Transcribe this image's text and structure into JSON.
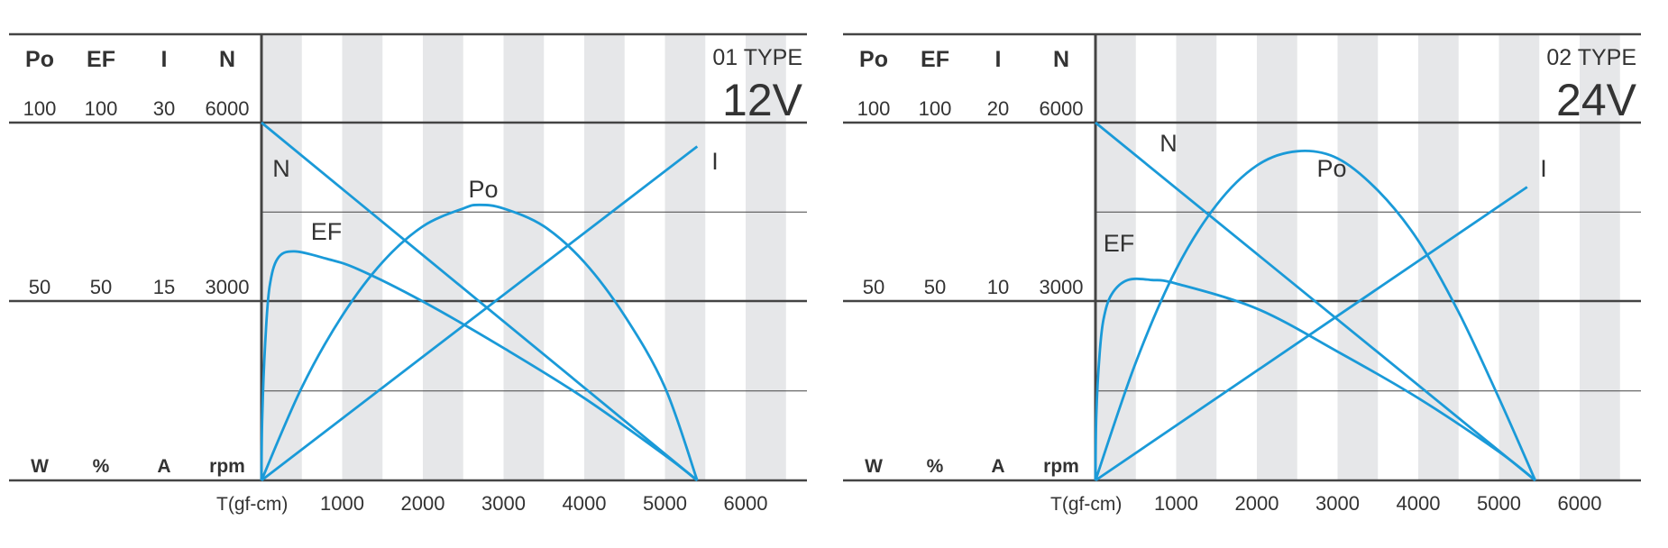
{
  "chart_data": [
    {
      "type": "line",
      "title": "01 TYPE",
      "voltage": "12V",
      "xlabel": "T(gf-cm)",
      "x_ticks": [
        "1000",
        "2000",
        "3000",
        "4000",
        "5000",
        "6000"
      ],
      "xlim": [
        0,
        6500
      ],
      "stripe_color": "#e6e7e9",
      "curve_color": "#1a9ad8",
      "scale_columns": [
        {
          "name": "Po",
          "unit": "W",
          "max": "100",
          "mid": "50",
          "ymax": 100
        },
        {
          "name": "EF",
          "unit": "%",
          "max": "100",
          "mid": "50",
          "ymax": 100
        },
        {
          "name": "I",
          "unit": "A",
          "max": "30",
          "mid": "15",
          "ymax": 30
        },
        {
          "name": "N",
          "unit": "rpm",
          "max": "6000",
          "mid": "3000",
          "ymax": 6000
        }
      ],
      "series": [
        {
          "name": "N",
          "label": "N",
          "scale": "N",
          "x": [
            0,
            5400
          ],
          "y": [
            6000,
            0
          ]
        },
        {
          "name": "I",
          "label": "I",
          "scale": "I",
          "x": [
            0,
            5400
          ],
          "y": [
            0,
            28
          ]
        },
        {
          "name": "EF",
          "label": "EF",
          "scale": "EF",
          "x": [
            0,
            10,
            50,
            100,
            200,
            400,
            800,
            1200,
            2000,
            3000,
            4000,
            5000,
            5400
          ],
          "y": [
            0,
            18,
            40,
            54,
            62,
            64,
            62,
            59,
            50,
            37,
            23,
            7,
            0
          ]
        },
        {
          "name": "Po",
          "label": "Po",
          "scale": "Po",
          "x": [
            0,
            500,
            1000,
            1500,
            2000,
            2500,
            2700,
            3000,
            3500,
            4000,
            4500,
            5000,
            5400
          ],
          "y": [
            0,
            26,
            46,
            61,
            71,
            76,
            77,
            76,
            71,
            61,
            46,
            26,
            0
          ]
        }
      ]
    },
    {
      "type": "line",
      "title": "02 TYPE",
      "voltage": "24V",
      "xlabel": "T(gf-cm)",
      "x_ticks": [
        "1000",
        "2000",
        "3000",
        "4000",
        "5000",
        "6000"
      ],
      "xlim": [
        0,
        6500
      ],
      "stripe_color": "#e6e7e9",
      "curve_color": "#1a9ad8",
      "scale_columns": [
        {
          "name": "Po",
          "unit": "W",
          "max": "100",
          "mid": "50",
          "ymax": 100
        },
        {
          "name": "EF",
          "unit": "%",
          "max": "100",
          "mid": "50",
          "ymax": 100
        },
        {
          "name": "I",
          "unit": "A",
          "max": "20",
          "mid": "10",
          "ymax": 20
        },
        {
          "name": "N",
          "unit": "rpm",
          "max": "6000",
          "mid": "3000",
          "ymax": 6000
        }
      ],
      "series": [
        {
          "name": "N",
          "label": "N",
          "scale": "N",
          "x": [
            0,
            5450
          ],
          "y": [
            6000,
            0
          ]
        },
        {
          "name": "I",
          "label": "I",
          "scale": "I",
          "x": [
            0,
            5350
          ],
          "y": [
            0,
            16.4
          ]
        },
        {
          "name": "EF",
          "label": "EF",
          "scale": "EF",
          "x": [
            0,
            10,
            50,
            100,
            200,
            400,
            700,
            1000,
            2000,
            3000,
            4000,
            5000,
            5450
          ],
          "y": [
            0,
            18,
            35,
            45,
            52,
            56,
            56,
            55,
            48,
            36,
            23,
            8,
            0
          ]
        },
        {
          "name": "Po",
          "label": "Po",
          "scale": "Po",
          "x": [
            0,
            500,
            1000,
            1500,
            2000,
            2500,
            3000,
            3500,
            4000,
            4500,
            5000,
            5450
          ],
          "y": [
            0,
            33,
            59,
            77,
            88,
            92,
            90,
            81,
            67,
            47,
            23,
            0
          ]
        }
      ]
    }
  ]
}
